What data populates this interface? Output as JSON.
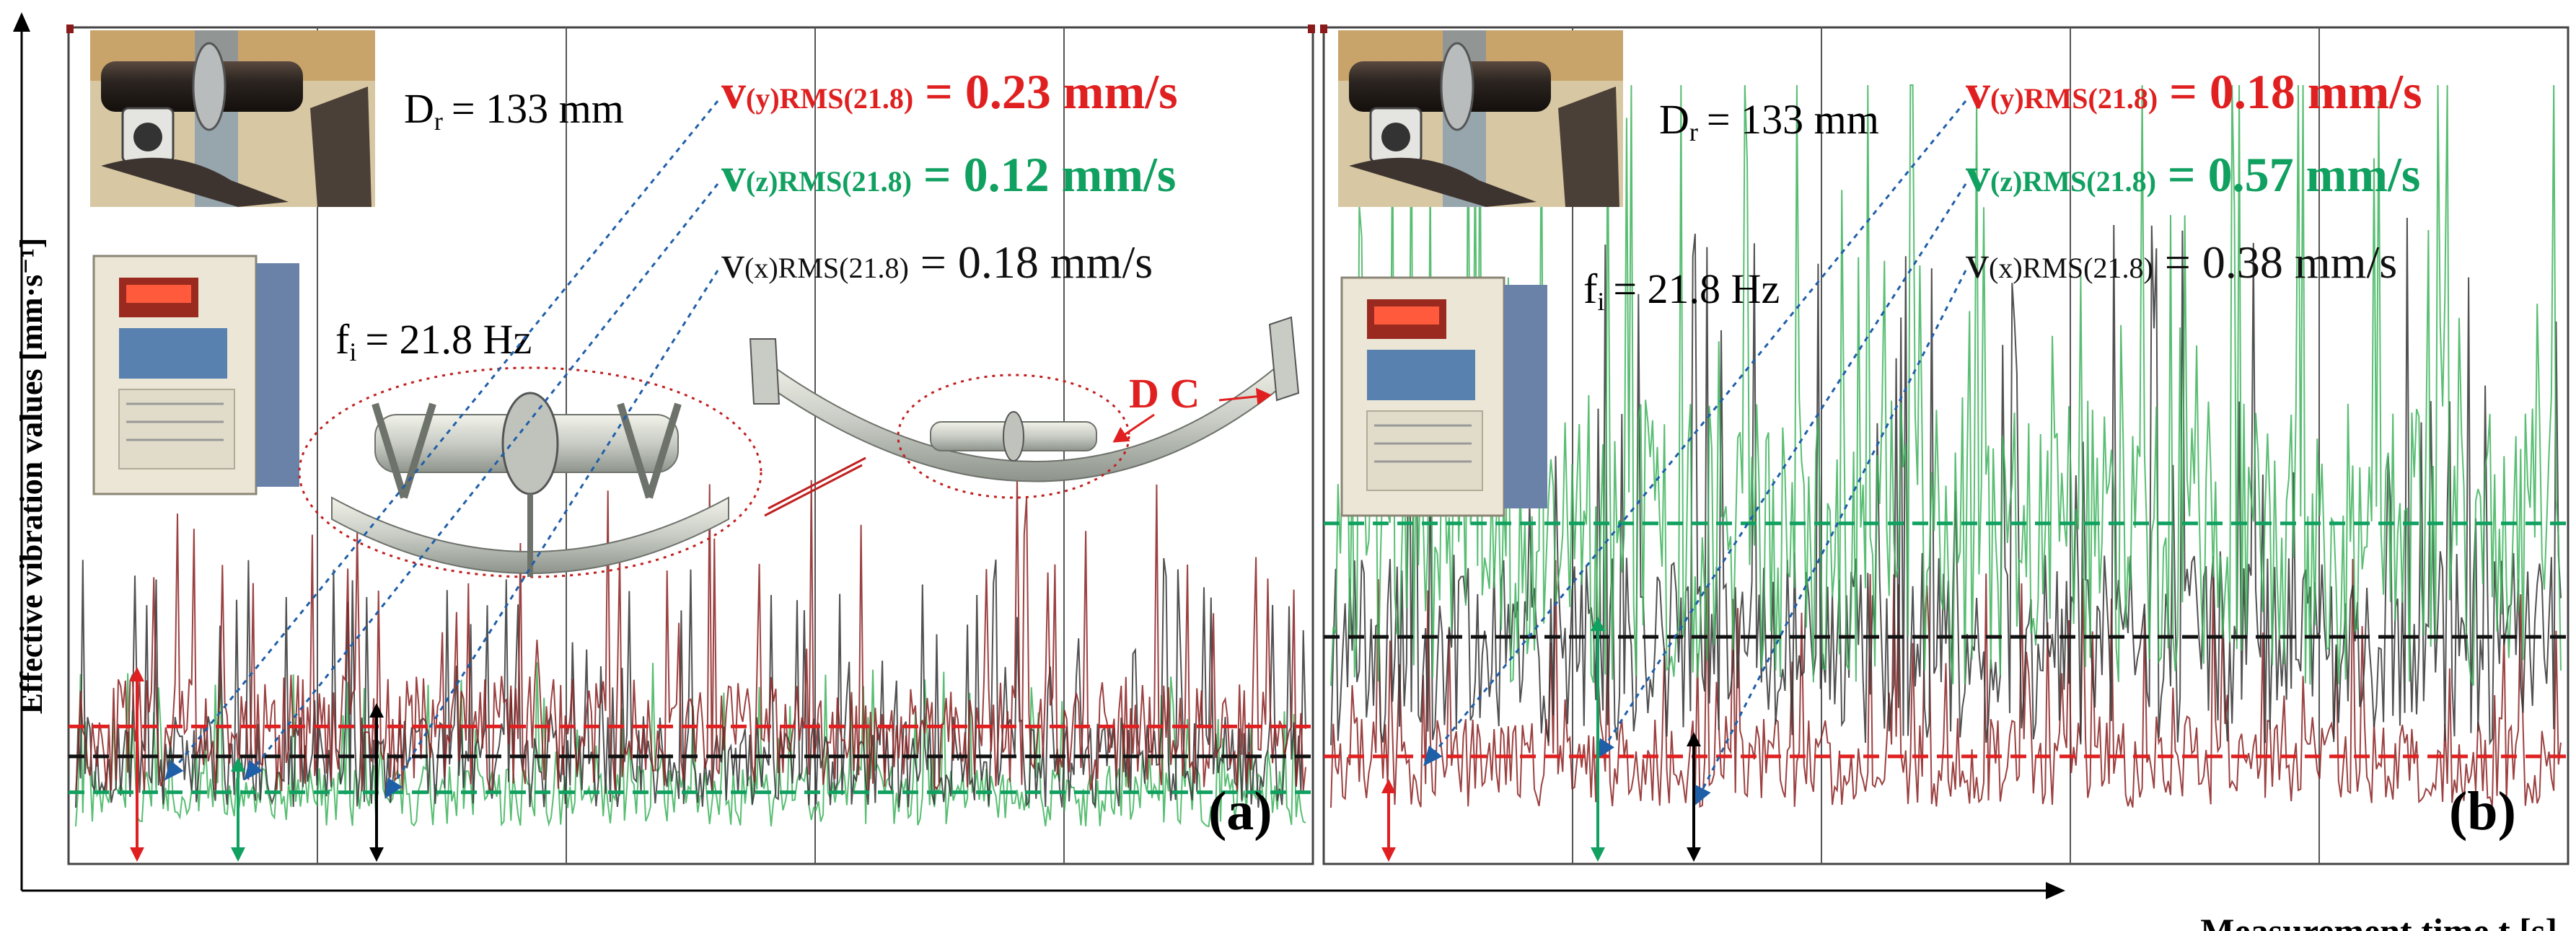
{
  "figure": {
    "y_axis_label": "Effective vibration values [mm·s⁻¹]",
    "x_axis_label": "Measurement time t [s]"
  },
  "colors": {
    "y_series": "#e02020",
    "z_series": "#10a060",
    "x_series": "#111111",
    "y_trace": "#8b2020",
    "z_trace": "#3cb35a",
    "x_trace": "#333333",
    "pointer": "#1f5fa8",
    "grid": "#555555",
    "annotation_red": "#e02020"
  },
  "panels": [
    {
      "id": "a",
      "panel_label": "(a)",
      "roller_diameter": {
        "symbol": "D",
        "subscript": "r",
        "value_text": "= 133 mm"
      },
      "frequency": {
        "symbol": "f",
        "subscript": "i",
        "value_text": "= 21.8 Hz"
      },
      "rms_labels": [
        {
          "axis": "y",
          "prefix": "v",
          "subscript": "(y)RMS(21.8)",
          "value_text": "= 0.23 mm/s"
        },
        {
          "axis": "z",
          "prefix": "v",
          "subscript": "(z)RMS(21.8)",
          "value_text": "= 0.12 mm/s"
        },
        {
          "axis": "x",
          "prefix": "v",
          "subscript": "(x)RMS(21.8)",
          "value_text": "= 0.18 mm/s"
        }
      ],
      "diagram_annotation": "D C",
      "images": [
        "conveyor-roller-photo",
        "frequency-inverter-photo",
        "idler-set-drawing"
      ]
    },
    {
      "id": "b",
      "panel_label": "(b)",
      "roller_diameter": {
        "symbol": "D",
        "subscript": "r",
        "value_text": "= 133 mm"
      },
      "frequency": {
        "symbol": "f",
        "subscript": "i",
        "value_text": "= 21.8 Hz"
      },
      "rms_labels": [
        {
          "axis": "y",
          "prefix": "v",
          "subscript": "(y)RMS(21.8)",
          "value_text": "= 0.18 mm/s"
        },
        {
          "axis": "z",
          "prefix": "v",
          "subscript": "(z)RMS(21.8)",
          "value_text": "= 0.57 mm/s"
        },
        {
          "axis": "x",
          "prefix": "v",
          "subscript": "(x)RMS(21.8)",
          "value_text": "= 0.38 mm/s"
        }
      ],
      "images": [
        "conveyor-roller-photo",
        "frequency-inverter-photo"
      ]
    }
  ],
  "chart_data": [
    {
      "type": "line",
      "panel": "(a)",
      "xlabel": "Measurement time t [s]",
      "ylabel": "Effective vibration values [mm·s⁻¹]",
      "grid": true,
      "series": [
        {
          "name": "v(y)RMS(21.8)",
          "color": "#e02020",
          "rms": 0.23
        },
        {
          "name": "v(z)RMS(21.8)",
          "color": "#10a060",
          "rms": 0.12
        },
        {
          "name": "v(x)RMS(21.8)",
          "color": "#111111",
          "rms": 0.18
        }
      ]
    },
    {
      "type": "line",
      "panel": "(b)",
      "xlabel": "Measurement time t [s]",
      "ylabel": "Effective vibration values [mm·s⁻¹]",
      "grid": true,
      "series": [
        {
          "name": "v(y)RMS(21.8)",
          "color": "#e02020",
          "rms": 0.18
        },
        {
          "name": "v(z)RMS(21.8)",
          "color": "#10a060",
          "rms": 0.57
        },
        {
          "name": "v(x)RMS(21.8)",
          "color": "#111111",
          "rms": 0.38
        }
      ]
    }
  ]
}
